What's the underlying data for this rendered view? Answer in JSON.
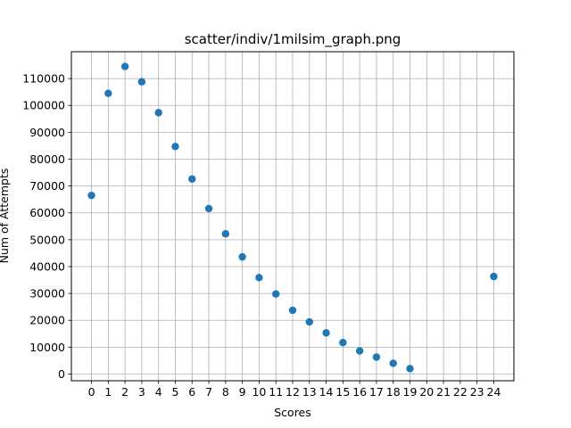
{
  "chart_data": {
    "type": "scatter",
    "title": "scatter/indiv/1milsim_graph.png",
    "xlabel": "Scores",
    "ylabel": "Num of Attempts",
    "xlim": [
      -1.2,
      25.2
    ],
    "ylim": [
      -2500,
      120000
    ],
    "x_ticks": [
      0,
      1,
      2,
      3,
      4,
      5,
      6,
      7,
      8,
      9,
      10,
      11,
      12,
      13,
      14,
      15,
      16,
      17,
      18,
      19,
      20,
      21,
      22,
      23,
      24
    ],
    "y_ticks": [
      0,
      10000,
      20000,
      30000,
      40000,
      50000,
      60000,
      70000,
      80000,
      90000,
      100000,
      110000
    ],
    "grid": true,
    "marker_color": "#1f77b4",
    "series": [
      {
        "x": [
          0,
          1,
          2,
          3,
          4,
          5,
          6,
          7,
          8,
          9,
          10,
          11,
          12,
          13,
          14,
          15,
          16,
          17,
          18,
          19,
          24
        ],
        "y": [
          66500,
          104500,
          114500,
          108800,
          97300,
          84700,
          72600,
          61600,
          52200,
          43600,
          35900,
          29800,
          23700,
          19400,
          15300,
          11700,
          8600,
          6300,
          4000,
          2000,
          36300
        ]
      }
    ]
  }
}
